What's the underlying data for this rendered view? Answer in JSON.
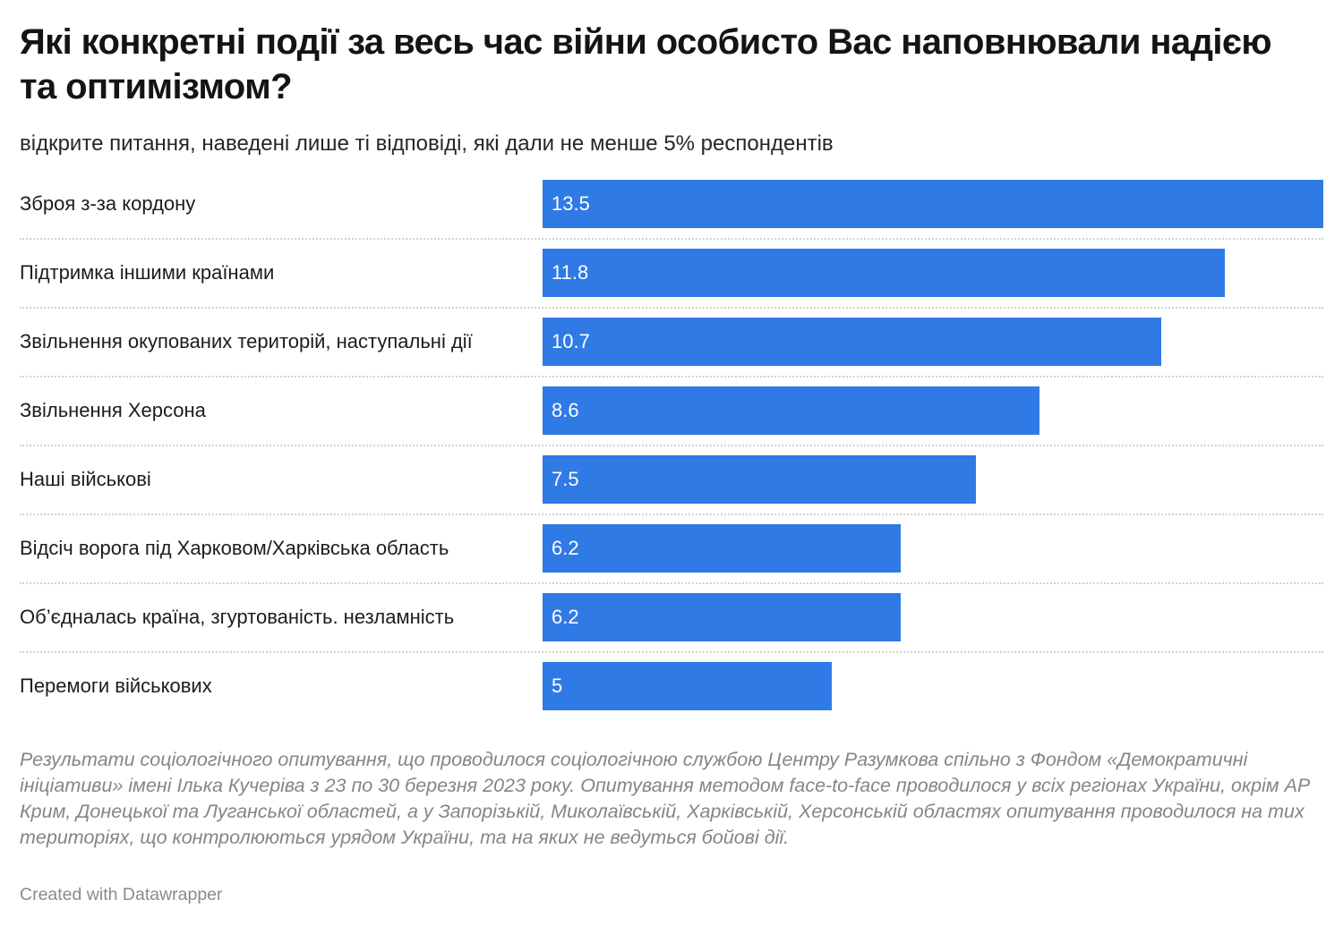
{
  "chart_data": {
    "type": "bar",
    "orientation": "horizontal",
    "title": "Які конкретні події за весь час війни особисто Вас наповнювали надією та оптимізмом?",
    "subtitle": "відкрите питання, наведені лише ті відповіді, які дали не менше 5% респондентів",
    "categories": [
      "Зброя з-за кордону",
      "Підтримка іншими країнами",
      "Звільнення окупованих територій, наступальні дії",
      "Звільнення Херсона",
      "Наші військові",
      "Відсіч ворога під Харковом/Харківська область",
      "Об’єдналась країна, згуртованість. незламність",
      "Перемоги військових"
    ],
    "values": [
      13.5,
      11.8,
      10.7,
      8.6,
      7.5,
      6.2,
      6.2,
      5
    ],
    "value_labels": [
      "13.5",
      "11.8",
      "10.7",
      "8.6",
      "7.5",
      "6.2",
      "6.2",
      "5"
    ],
    "xlim": [
      0,
      13.5
    ],
    "bar_color": "#2f7ae5",
    "value_label_color": "#ffffff",
    "grid": false,
    "row_dividers": "dotted",
    "notes": "Результати соціологічного опитування, що проводилося соціологічною службою Центру Разумкова спільно з Фондом «Демократичні ініціативи» імені Ілька Кучеріва з 23 по 30 березня 2023 року. Опитування методом face-to-face проводилося у всіх регіонах України, окрім АР Крим, Донецької та Луганської областей, а у Запорізькій, Миколаївській, Харківській, Херсонській областях опитування проводилося на тих територіях, що контролюються урядом України, та на яких не ведуться бойові дії.",
    "credit": "Created with Datawrapper"
  }
}
